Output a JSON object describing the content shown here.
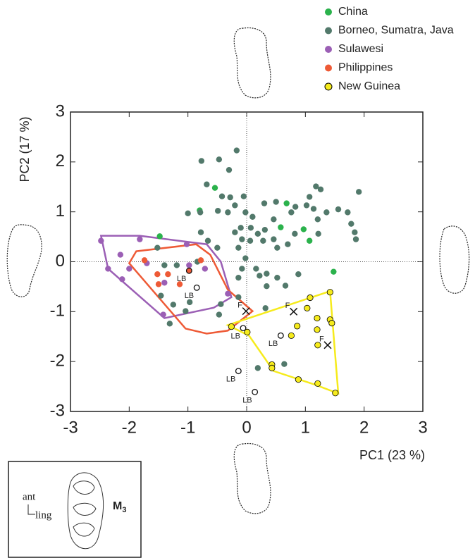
{
  "chart_data": {
    "type": "scatter",
    "xlabel": "PC1 (23 %)",
    "ylabel": "PC2 (17 %)",
    "xlim": [
      -3,
      3
    ],
    "ylim": [
      -3,
      3
    ],
    "xticks": [
      -3,
      -2,
      -1,
      0,
      1,
      2,
      3
    ],
    "yticks": [
      -3,
      -2,
      -1,
      0,
      1,
      2,
      3
    ],
    "zero_lines": true,
    "legend": "top-right",
    "series": [
      {
        "name": "China",
        "color": "#2bb24c",
        "x": [
          -0.54,
          -0.8,
          -1.48,
          0.68,
          0.58,
          0.97,
          1.07,
          1.48
        ],
        "values": [
          1.48,
          1.03,
          0.51,
          1.17,
          0.69,
          0.65,
          0.42,
          -0.2
        ]
      },
      {
        "name": "Borneo, Sumatra, Java",
        "color": "#52796b",
        "x": [
          -0.17,
          -0.47,
          -0.77,
          -0.3,
          -0.68,
          -1.0,
          -0.79,
          -0.42,
          -0.28,
          -0.05,
          -0.2,
          -0.49,
          -0.32,
          -0.02,
          0.1,
          0.3,
          0.5,
          0.83,
          1.02,
          1.14,
          1.21,
          1.36,
          1.56,
          1.72,
          1.91,
          1.18,
          1.26,
          1.07,
          0.76,
          0.46,
          0.31,
          0.19,
          0.07,
          -0.1,
          -0.2,
          -0.08,
          -0.14,
          0.06,
          0.28,
          0.46,
          0.52,
          0.7,
          0.82,
          1.22,
          1.78,
          1.84,
          1.86,
          -0.78,
          -0.66,
          -0.5,
          -1.52,
          -1.4,
          -1.19,
          -0.84,
          -0.02,
          0.16,
          0.22,
          -0.08,
          -0.14,
          0.34,
          0.52,
          0.88,
          0.66,
          0.34,
          -0.14,
          -0.44,
          -0.47,
          -0.97,
          -1.04,
          -1.46,
          -1.31,
          -1.25,
          0.19,
          0.64,
          0.32
        ],
        "values": [
          2.23,
          2.05,
          2.02,
          1.84,
          1.55,
          0.97,
          0.99,
          1.31,
          1.29,
          1.31,
          1.13,
          1.02,
          0.99,
          0.99,
          0.9,
          1.17,
          1.2,
          1.1,
          1.13,
          1.06,
          0.85,
          0.99,
          1.05,
          0.99,
          1.4,
          1.51,
          1.45,
          1.3,
          0.99,
          0.85,
          0.64,
          0.56,
          0.68,
          0.68,
          0.59,
          0.45,
          0.28,
          0.42,
          0.42,
          0.45,
          0.28,
          0.35,
          0.56,
          0.56,
          0.76,
          0.59,
          0.45,
          0.59,
          0.42,
          0.28,
          0.28,
          -0.07,
          -0.07,
          0.0,
          0.07,
          -0.14,
          -0.28,
          -0.14,
          -0.32,
          -0.24,
          -0.32,
          -0.25,
          -0.48,
          -0.49,
          -0.71,
          -0.85,
          -1.06,
          -0.81,
          -0.99,
          -0.68,
          -1.24,
          -0.86,
          -2.13,
          -2.05,
          -0.93
        ]
      },
      {
        "name": "Sulawesi",
        "color": "#9b5fb5",
        "x": [
          -2.48,
          -2.36,
          -2.15,
          -2.0,
          -1.82,
          -1.7,
          -1.4,
          -1.42,
          -1.02,
          -0.98,
          -0.71,
          -0.32,
          -2.12
        ],
        "values": [
          0.42,
          -0.14,
          0.14,
          -0.14,
          0.45,
          -0.03,
          -0.42,
          -1.06,
          0.35,
          -0.07,
          -0.14,
          -0.64,
          -0.35
        ],
        "hull": {
          "x": [
            -2.48,
            -1.82,
            -0.68,
            -0.44,
            -0.26,
            -0.56,
            -1.4,
            -2.36
          ],
          "y": [
            0.52,
            0.52,
            0.35,
            0.0,
            -0.71,
            -0.92,
            -1.13,
            -0.14
          ]
        }
      },
      {
        "name": "Philippines",
        "color": "#ee5a36",
        "x": [
          -1.74,
          -1.52,
          -1.34,
          -1.14,
          -1.5,
          -0.98,
          -0.78
        ],
        "values": [
          0.03,
          -0.25,
          -0.25,
          -0.45,
          -0.45,
          -0.18,
          0.03
        ],
        "hull": {
          "x": [
            -1.88,
            -0.86,
            -0.62,
            -0.32,
            0.1,
            -0.32,
            -0.68,
            -1.04,
            -2.0
          ],
          "y": [
            0.21,
            0.35,
            0.14,
            -0.56,
            -0.99,
            -1.38,
            -1.44,
            -1.34,
            -0.03
          ]
        }
      },
      {
        "name": "New Guinea",
        "color": "#f6eb1c",
        "outline": "#000000",
        "x": [
          -0.26,
          0.01,
          1.08,
          1.03,
          0.86,
          0.76,
          1.2,
          1.2,
          1.21,
          1.42,
          1.45,
          1.42,
          0.43,
          0.43,
          0.88,
          1.21,
          1.51
        ],
        "values": [
          -1.3,
          -1.41,
          -0.72,
          -0.93,
          -1.29,
          -1.48,
          -1.13,
          -1.36,
          -1.67,
          -1.16,
          -1.23,
          -0.61,
          -2.06,
          -2.13,
          -2.36,
          -2.44,
          -2.63
        ],
        "hull": {
          "x": [
            -0.32,
            1.42,
            1.56,
            1.18,
            0.46,
            0.04
          ],
          "y": [
            -1.27,
            -0.59,
            -2.64,
            -2.47,
            -2.19,
            -1.48
          ]
        }
      }
    ],
    "specimens": [
      {
        "label": "LB",
        "marker": "circle",
        "x": -0.98,
        "y": -0.18
      },
      {
        "label": "LB",
        "marker": "circle",
        "x": -0.85,
        "y": -0.52
      },
      {
        "label": "LB",
        "marker": "circle",
        "x": -0.06,
        "y": -1.33
      },
      {
        "label": "LB",
        "marker": "circle",
        "x": 0.58,
        "y": -1.48
      },
      {
        "label": "LB",
        "marker": "circle",
        "x": -0.14,
        "y": -2.19
      },
      {
        "label": "LB",
        "marker": "circle",
        "x": 0.14,
        "y": -2.61
      },
      {
        "label": "F",
        "marker": "cross",
        "x": -0.01,
        "y": -0.99
      },
      {
        "label": "F",
        "marker": "cross",
        "x": 0.8,
        "y": -1.0
      },
      {
        "label": "F",
        "marker": "cross",
        "x": 1.38,
        "y": -1.67
      }
    ]
  },
  "inset": {
    "anterior": "ant",
    "lingual": "ling",
    "tooth": "M",
    "tooth_index": "3"
  }
}
